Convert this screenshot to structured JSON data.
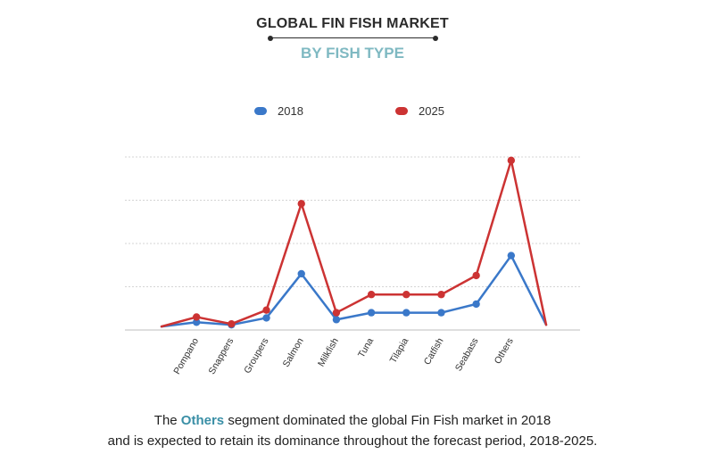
{
  "header": {
    "title": "GLOBAL FIN FISH  MARKET",
    "subtitle": "BY FISH TYPE"
  },
  "caption": {
    "line1_pre": "The ",
    "highlight": "Others",
    "line1_post": " segment dominated the global Fin Fish  market in 2018",
    "line2": "and is expected to retain its dominance throughout the forecast period, 2018-2025."
  },
  "colors": {
    "series_2018": "#3a78c9",
    "series_2025": "#cc3333",
    "highlight": "#3a8fa6"
  },
  "chart_data": {
    "type": "line",
    "title": "",
    "xlabel": "",
    "ylabel": "",
    "ylim": [
      0,
      100
    ],
    "grid": true,
    "legend_position": "top",
    "categories": [
      "",
      "Pompano",
      "Snappers",
      "Groupers",
      "Salmon",
      "Milkfish",
      "Tuna",
      "Tilapia",
      "Catfish",
      "Seabass",
      "Others",
      ""
    ],
    "series": [
      {
        "name": "2018",
        "values": [
          2,
          4.5,
          3,
          7,
          32.5,
          6,
          10,
          10,
          10,
          15,
          43,
          3
        ]
      },
      {
        "name": "2025",
        "values": [
          2,
          7.5,
          3.5,
          11.5,
          73,
          10,
          20.5,
          20.5,
          20.5,
          31.5,
          98,
          3
        ]
      }
    ]
  }
}
